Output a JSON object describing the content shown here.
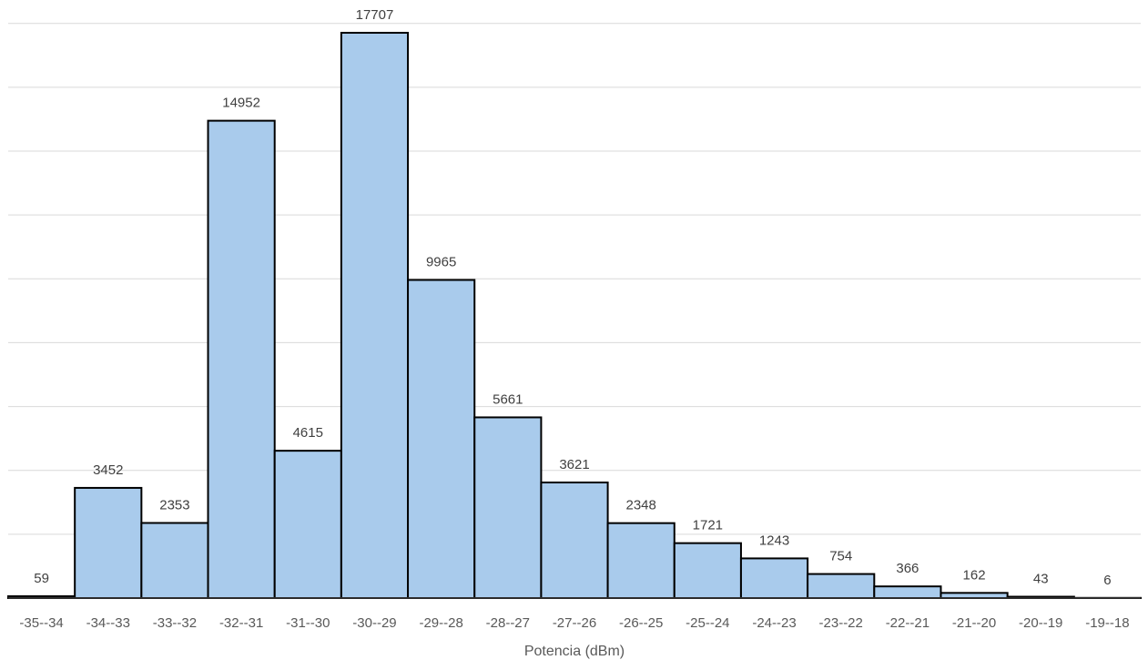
{
  "chart_data": {
    "type": "bar",
    "title": "",
    "xlabel": "Potencia (dBm)",
    "ylabel": "",
    "ylim": [
      0,
      18000
    ],
    "grid": true,
    "legend": "none",
    "bar_color": "#a9cbec",
    "bar_edge_color": "#000000",
    "gridline_color": "#d9d9d9",
    "categories": [
      "-35--34",
      "-34--33",
      "-33--32",
      "-32--31",
      "-31--30",
      "-30--29",
      "-29--28",
      "-28--27",
      "-27--26",
      "-26--25",
      "-25--24",
      "-24--23",
      "-23--22",
      "-22--21",
      "-21--20",
      "-20--19",
      "-19--18"
    ],
    "values": [
      59,
      3452,
      2353,
      14952,
      4615,
      17707,
      9965,
      5661,
      3621,
      2348,
      1721,
      1243,
      754,
      366,
      162,
      43,
      6
    ]
  }
}
